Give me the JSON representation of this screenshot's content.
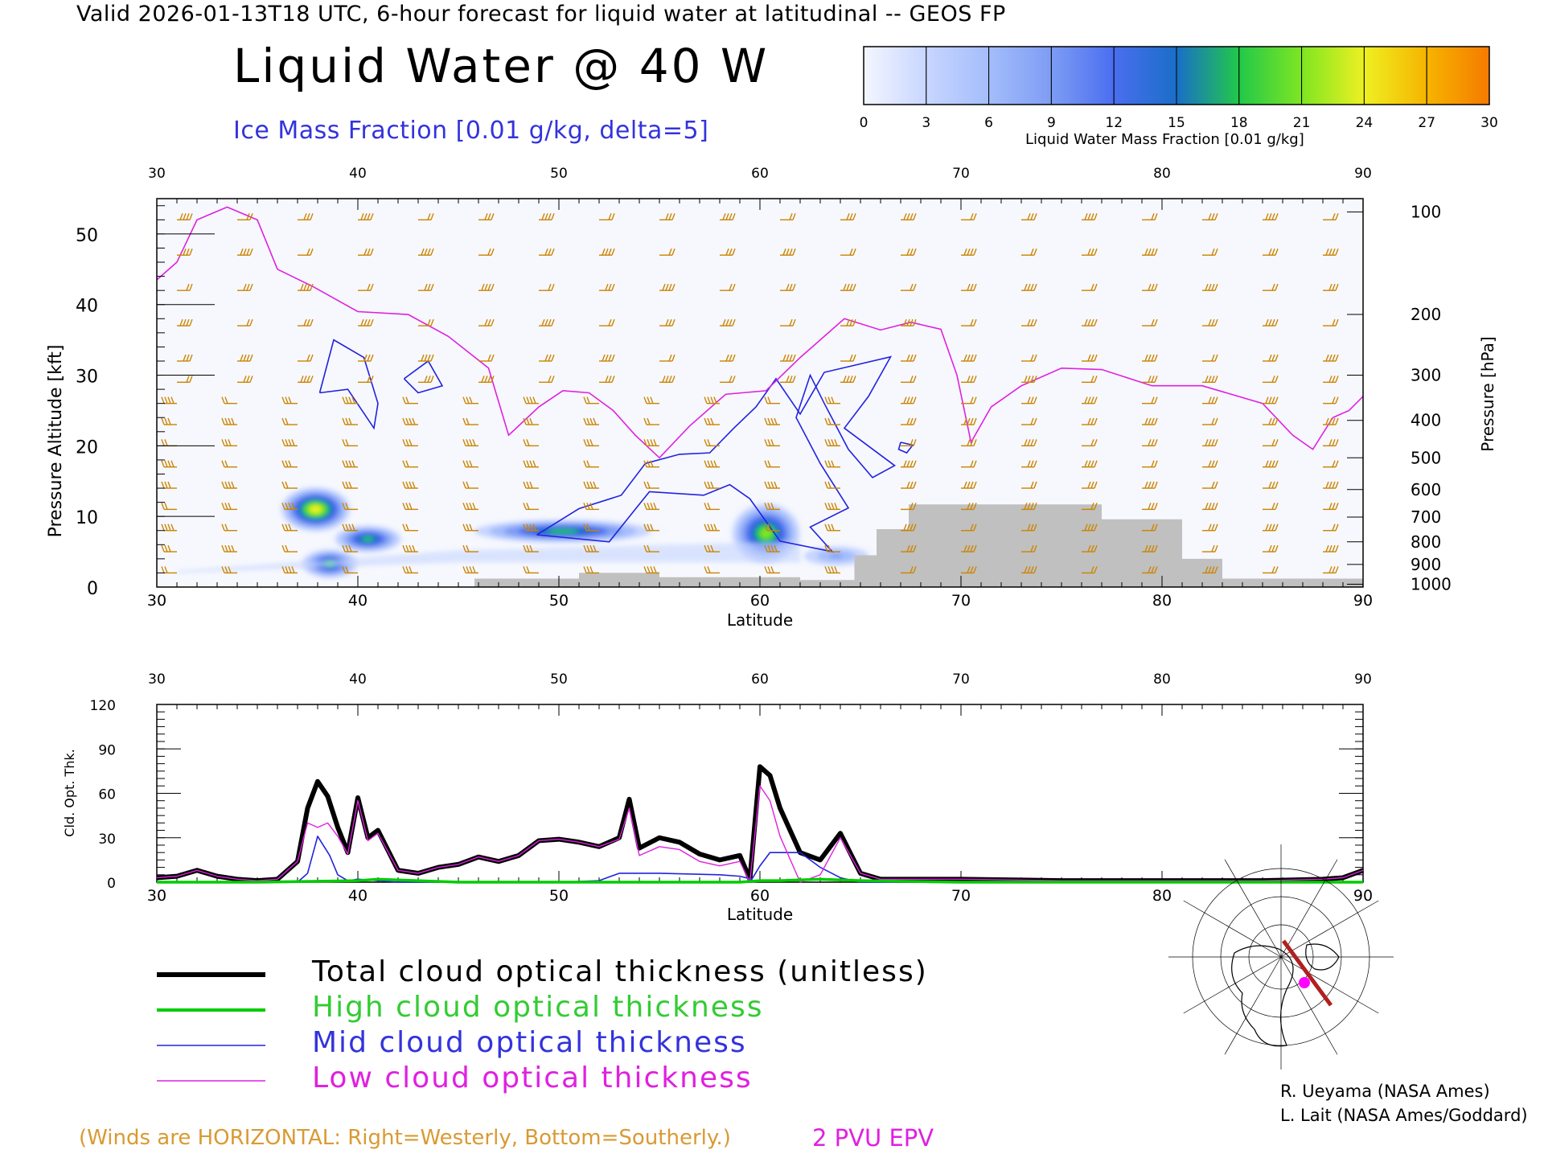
{
  "header": {
    "line": "Valid 2026-01-13T18 UTC, 6-hour forecast for liquid water at latitudinal -- GEOS FP",
    "title": "Liquid Water @ 40 W",
    "subtitle": "Ice Mass Fraction [0.01 g/kg, delta=5]"
  },
  "colorbar": {
    "label": "Liquid Water Mass Fraction [0.01 g/kg]",
    "ticks": [
      "0",
      "3",
      "6",
      "9",
      "12",
      "15",
      "18",
      "21",
      "24",
      "27",
      "30"
    ],
    "colors": [
      "#f4f6ff",
      "#c8d6ff",
      "#a4bdfb",
      "#7e9cf4",
      "#4a6ef0",
      "#1a6ec8",
      "#22c84a",
      "#7ee622",
      "#eef022",
      "#f6b400",
      "#f57a00"
    ]
  },
  "chart_data": [
    {
      "type": "heatmap",
      "title": "Liquid Water @ 40 W",
      "xlabel": "Latitude",
      "ylabel": "Pressure Altitude [kft]",
      "y2label": "Pressure [hPa]",
      "xlim": [
        30,
        90
      ],
      "ylim": [
        0,
        55
      ],
      "x_ticks": [
        "30",
        "40",
        "50",
        "60",
        "70",
        "80",
        "90"
      ],
      "y_ticks": [
        "0",
        "10",
        "20",
        "30",
        "40",
        "50"
      ],
      "pressure_ticks": [
        {
          "label": "100",
          "kft": 53.1
        },
        {
          "label": "200",
          "kft": 38.6
        },
        {
          "label": "300",
          "kft": 30.0
        },
        {
          "label": "400",
          "kft": 23.6
        },
        {
          "label": "500",
          "kft": 18.3
        },
        {
          "label": "600",
          "kft": 13.8
        },
        {
          "label": "700",
          "kft": 9.9
        },
        {
          "label": "800",
          "kft": 6.4
        },
        {
          "label": "900",
          "kft": 3.2
        },
        {
          "label": "1000",
          "kft": 0.4
        }
      ],
      "liquid_water_blobs": [
        {
          "lat": 37.9,
          "kft": 11.0,
          "max": 25,
          "w": 0.6,
          "h": 2.2
        },
        {
          "lat": 38.6,
          "kft": 3.3,
          "max": 19,
          "w": 0.5,
          "h": 1.5
        },
        {
          "lat": 40.5,
          "kft": 6.8,
          "max": 17,
          "w": 0.6,
          "h": 1.4
        },
        {
          "lat": 50.2,
          "kft": 7.9,
          "max": 17,
          "w": 1.6,
          "h": 1.2
        },
        {
          "lat": 60.3,
          "kft": 7.6,
          "max": 20,
          "w": 0.6,
          "h": 3.0
        },
        {
          "lat": 63.8,
          "kft": 4.4,
          "max": 10,
          "w": 0.7,
          "h": 1.2
        }
      ],
      "terrain_kft": [
        [
          30,
          0
        ],
        [
          45.8,
          0
        ],
        [
          45.8,
          1.2
        ],
        [
          51,
          1.2
        ],
        [
          51,
          2.0
        ],
        [
          55,
          2.0
        ],
        [
          55,
          1.4
        ],
        [
          62,
          1.4
        ],
        [
          62,
          1.0
        ],
        [
          64.7,
          1.0
        ],
        [
          64.7,
          4.5
        ],
        [
          65.8,
          4.5
        ],
        [
          65.8,
          8.2
        ],
        [
          67.4,
          8.2
        ],
        [
          67.4,
          11.7
        ],
        [
          77,
          11.7
        ],
        [
          77,
          9.6
        ],
        [
          81,
          9.6
        ],
        [
          81,
          4.0
        ],
        [
          83,
          4.0
        ],
        [
          83,
          1.2
        ],
        [
          90,
          1.2
        ]
      ],
      "ice_contour_kft": [
        [
          [
            38.1,
            27.5
          ],
          [
            38.8,
            35.0
          ],
          [
            40.3,
            32.5
          ],
          [
            41.0,
            26.0
          ],
          [
            40.8,
            22.5
          ],
          [
            39.5,
            28.0
          ],
          [
            38.1,
            27.5
          ]
        ],
        [
          [
            42.3,
            29.5
          ],
          [
            43.5,
            32.0
          ],
          [
            44.2,
            28.5
          ],
          [
            43.0,
            27.5
          ],
          [
            42.3,
            29.5
          ]
        ],
        [
          [
            48.9,
            7.4
          ],
          [
            52.5,
            6.4
          ],
          [
            54.5,
            13.5
          ],
          [
            57.2,
            13.0
          ],
          [
            58.5,
            14.5
          ],
          [
            59.5,
            12.5
          ],
          [
            61.0,
            6.5
          ],
          [
            63.6,
            5.0
          ],
          [
            62.5,
            8.5
          ],
          [
            64.4,
            11.2
          ],
          [
            63.0,
            17.5
          ],
          [
            61.8,
            24.0
          ],
          [
            62.5,
            30.0
          ],
          [
            63.2,
            26.0
          ],
          [
            64.4,
            19.5
          ],
          [
            65.6,
            15.5
          ],
          [
            66.7,
            17.2
          ],
          [
            64.2,
            22.5
          ],
          [
            65.4,
            27.0
          ],
          [
            66.5,
            32.6
          ],
          [
            63.2,
            30.4
          ],
          [
            62.0,
            24.5
          ],
          [
            60.8,
            29.5
          ],
          [
            59.8,
            25.5
          ],
          [
            58.7,
            22.5
          ],
          [
            57.5,
            19.0
          ],
          [
            56.0,
            18.8
          ],
          [
            54.3,
            17.5
          ],
          [
            53.1,
            13.0
          ],
          [
            51.0,
            11.1
          ],
          [
            48.9,
            7.4
          ]
        ],
        [
          [
            67.0,
            20.5
          ],
          [
            67.6,
            20.1
          ],
          [
            67.3,
            19.0
          ],
          [
            66.9,
            19.5
          ],
          [
            67.0,
            20.5
          ]
        ]
      ],
      "epv_2pvu_kft": [
        [
          30,
          43.5
        ],
        [
          31.0,
          46.0
        ],
        [
          32.0,
          52.0
        ],
        [
          33.5,
          53.8
        ],
        [
          35.0,
          52.0
        ],
        [
          36.0,
          45.0
        ],
        [
          37.8,
          42.5
        ],
        [
          40.0,
          39.0
        ],
        [
          42.5,
          38.6
        ],
        [
          44.5,
          35.5
        ],
        [
          46.5,
          31.0
        ],
        [
          47.5,
          21.5
        ],
        [
          49.0,
          25.5
        ],
        [
          50.2,
          27.8
        ],
        [
          51.5,
          27.5
        ],
        [
          52.7,
          25.0
        ],
        [
          53.8,
          21.5
        ],
        [
          55.0,
          18.3
        ],
        [
          56.5,
          22.8
        ],
        [
          58.3,
          27.3
        ],
        [
          60.3,
          27.8
        ],
        [
          62.0,
          32.5
        ],
        [
          64.2,
          38.0
        ],
        [
          66.0,
          36.4
        ],
        [
          67.5,
          37.5
        ],
        [
          69.0,
          36.5
        ],
        [
          69.8,
          30.0
        ],
        [
          70.5,
          20.5
        ],
        [
          71.5,
          25.5
        ],
        [
          73.0,
          28.5
        ],
        [
          75.0,
          31.0
        ],
        [
          77.0,
          30.8
        ],
        [
          79.5,
          28.5
        ],
        [
          82.0,
          28.5
        ],
        [
          85.0,
          26.0
        ],
        [
          86.5,
          21.5
        ],
        [
          87.5,
          19.5
        ],
        [
          88.5,
          24.0
        ],
        [
          89.3,
          25.0
        ],
        [
          90,
          27.0
        ]
      ],
      "wind_columns_lat": [
        31,
        34,
        37,
        40,
        43,
        46,
        49,
        52,
        55,
        58,
        61,
        64,
        67,
        70,
        73,
        76,
        79,
        82,
        85,
        88
      ],
      "wind_levels_kft": [
        2,
        5,
        8,
        11,
        14,
        17,
        20,
        23,
        26,
        29,
        32,
        37,
        42,
        47,
        52
      ],
      "annotations": [
        "(Winds are HORIZONTAL: Right=Westerly, Bottom=Southerly.)",
        "2 PVU EPV"
      ]
    },
    {
      "type": "line",
      "xlabel": "Latitude",
      "ylabel": "Cld. Opt. Thk.",
      "xlim": [
        30,
        90
      ],
      "ylim": [
        0,
        120
      ],
      "x_ticks": [
        "30",
        "40",
        "50",
        "60",
        "70",
        "80",
        "90"
      ],
      "y_ticks": [
        "0",
        "30",
        "60",
        "90",
        "120"
      ],
      "series": [
        {
          "name": "Total cloud optical thickness (unitless)",
          "color": "#000000",
          "x": [
            30,
            31,
            32,
            33,
            34,
            35,
            36,
            37,
            37.5,
            38,
            38.5,
            39,
            39.5,
            40,
            40.5,
            41,
            42,
            43,
            44,
            45,
            46,
            47,
            48,
            49,
            50,
            51,
            52,
            53,
            53.5,
            54,
            55,
            56,
            57,
            58,
            59,
            59.5,
            60,
            60.5,
            61,
            62,
            63,
            64,
            65,
            66,
            68,
            70,
            75,
            80,
            85,
            88,
            89,
            90
          ],
          "y": [
            3,
            4,
            8,
            4,
            2,
            1,
            2,
            14,
            50,
            68,
            58,
            37,
            20,
            57,
            30,
            35,
            8,
            6,
            10,
            12,
            17,
            14,
            18,
            28,
            29,
            27,
            24,
            30,
            56,
            23,
            30,
            27,
            19,
            15,
            18,
            2,
            78,
            72,
            50,
            20,
            15,
            33,
            6,
            2,
            2,
            2,
            1,
            1,
            1,
            2,
            3,
            8
          ]
        },
        {
          "name": "High cloud optical thickness",
          "color": "#00cc00",
          "x": [
            30,
            35,
            40,
            41,
            45,
            55,
            59,
            60,
            61,
            63,
            65,
            70,
            80,
            90
          ],
          "y": [
            0,
            0,
            1,
            2,
            0,
            0,
            0,
            1,
            1,
            2,
            1,
            0,
            0,
            0
          ]
        },
        {
          "name": "Mid cloud optical thickness",
          "color": "#2222dd",
          "x": [
            30,
            37,
            37.5,
            38,
            38.6,
            39,
            39.5,
            40,
            42,
            50,
            52,
            53,
            55,
            58,
            59,
            59.6,
            60,
            60.5,
            61,
            62,
            63,
            64,
            65,
            70,
            90
          ],
          "y": [
            0,
            0,
            6,
            31,
            18,
            5,
            1,
            2,
            0,
            0,
            1,
            6,
            6,
            5,
            4,
            2,
            11,
            20,
            20,
            20,
            10,
            3,
            0,
            0,
            0
          ]
        },
        {
          "name": "Low cloud optical thickness",
          "color": "#e020e0",
          "x": [
            30,
            31,
            32,
            33,
            34,
            35,
            36,
            37,
            37.5,
            38,
            38.5,
            39,
            39.5,
            40,
            40.5,
            41,
            42,
            43,
            44,
            45,
            46,
            47,
            48,
            49,
            50,
            51,
            52,
            53,
            53.5,
            54,
            55,
            56,
            57,
            58,
            59,
            59.5,
            60,
            60.5,
            61,
            62,
            63,
            64,
            65,
            66,
            68,
            70,
            75,
            80,
            85,
            88,
            89,
            90
          ],
          "y": [
            3,
            4,
            8,
            4,
            2,
            1,
            2,
            14,
            40,
            37,
            40,
            31,
            19,
            55,
            28,
            33,
            8,
            6,
            10,
            12,
            17,
            14,
            18,
            28,
            29,
            27,
            24,
            29,
            50,
            18,
            24,
            22,
            14,
            11,
            14,
            0,
            65,
            55,
            31,
            0,
            5,
            30,
            6,
            2,
            2,
            2,
            1,
            1,
            1,
            2,
            3,
            8
          ]
        }
      ]
    }
  ],
  "legend": [
    {
      "label": "Total cloud optical thickness (unitless)",
      "color": "#000000",
      "text_color": "#000000"
    },
    {
      "label": "High cloud optical thickness",
      "color": "#00cc00",
      "text_color": "#33cc33"
    },
    {
      "label": "Mid cloud optical thickness",
      "color": "#2222dd",
      "text_color": "#3333dd"
    },
    {
      "label": "Low cloud optical thickness",
      "color": "#e020e0",
      "text_color": "#e020e0"
    }
  ],
  "credits": [
    "R. Ueyama (NASA Ames)",
    "L. Lait (NASA Ames/Goddard)"
  ],
  "notes": {
    "winds": "(Winds are HORIZONTAL: Right=Westerly, Bottom=Southerly.)",
    "epv": "2 PVU EPV"
  },
  "colors": {
    "wind_barb": "#cc8400",
    "terrain": "#c0c0c0",
    "ice_contour": "#2222dd",
    "epv_line": "#e020e0",
    "map_track": "#b02020",
    "map_dot": "#ff00ff"
  },
  "map_inset": {
    "icon": "north-america-polar-map-icon"
  }
}
